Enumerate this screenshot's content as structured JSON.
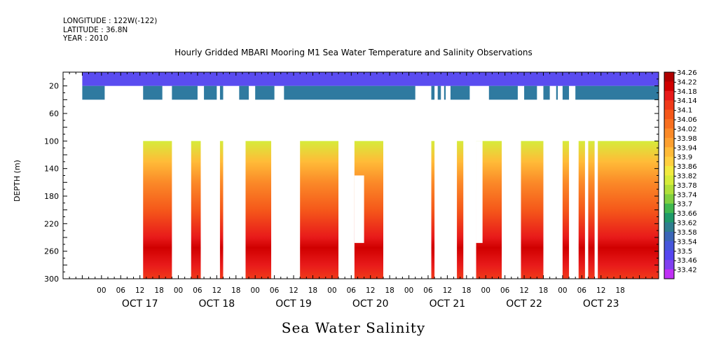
{
  "header": {
    "longitude": "LONGITUDE : 122W(-122)",
    "latitude": "LATITUDE : 36.8N",
    "year": "YEAR : 2010"
  },
  "chart_data": {
    "type": "heatmap",
    "title": "Hourly Gridded MBARI Mooring M1 Sea Water Temperature and Salinity Observations",
    "bottom_title": "Sea Water Salinity",
    "ylabel": "DEPTH (m)",
    "ylim": [
      300,
      0
    ],
    "y_ticks": [
      20,
      60,
      100,
      140,
      180,
      220,
      260,
      300
    ],
    "x_hour_labels": [
      "00",
      "06",
      "12",
      "18",
      "00",
      "06",
      "12",
      "18",
      "00",
      "06",
      "12",
      "18",
      "00",
      "06",
      "12",
      "18",
      "00",
      "06",
      "12",
      "18",
      "00",
      "06",
      "12",
      "18",
      "00",
      "06",
      "12",
      "18"
    ],
    "x_day_labels": [
      "OCT 17",
      "OCT 18",
      "OCT 19",
      "OCT 20",
      "OCT 21",
      "OCT 22",
      "OCT 23"
    ],
    "x_range_hours": [
      -12,
      174
    ],
    "colorbar_labels": [
      "34.26",
      "34.22",
      "34.18",
      "34.14",
      "34.1",
      "34.06",
      "34.02",
      "33.98",
      "33.94",
      "33.9",
      "33.86",
      "33.82",
      "33.78",
      "33.74",
      "33.7",
      "33.66",
      "33.62",
      "33.58",
      "33.54",
      "33.5",
      "33.46",
      "33.42"
    ],
    "colorbar_colors": [
      "#b00000",
      "#d00000",
      "#e81a1a",
      "#f03a1a",
      "#f5581a",
      "#f87020",
      "#fb8a28",
      "#fda030",
      "#ffbb38",
      "#ffd040",
      "#f2ea40",
      "#d6ec3a",
      "#b0e03a",
      "#80d040",
      "#40b850",
      "#1f9a6a",
      "#2f7e90",
      "#3b66b8",
      "#4656dc",
      "#5646f0",
      "#8040f0",
      "#c030f5"
    ],
    "profiles": [
      {
        "depth": 10,
        "salinity": 33.52
      },
      {
        "depth": 30,
        "salinity": 33.6
      },
      {
        "depth": 100,
        "salinity": 33.84
      },
      {
        "depth": 130,
        "salinity": 33.96
      },
      {
        "depth": 160,
        "salinity": 34.05
      },
      {
        "depth": 200,
        "salinity": 34.12
      },
      {
        "depth": 240,
        "salinity": 34.2
      },
      {
        "depth": 255,
        "salinity": 34.24
      },
      {
        "depth": 280,
        "salinity": 34.18
      },
      {
        "depth": 300,
        "salinity": 34.16
      }
    ],
    "surface_segments_hours": [
      [
        -6,
        174
      ]
    ],
    "mid_segments_hours": [
      [
        -6,
        1
      ],
      [
        13,
        19
      ],
      [
        22,
        30
      ],
      [
        32,
        36
      ],
      [
        37,
        38
      ],
      [
        43,
        46
      ],
      [
        48,
        54
      ],
      [
        57,
        98
      ],
      [
        103,
        104
      ],
      [
        105,
        106
      ],
      [
        107,
        107.5
      ],
      [
        109,
        115
      ],
      [
        121,
        130
      ],
      [
        132,
        136
      ],
      [
        138,
        140
      ],
      [
        142,
        142.5
      ],
      [
        144,
        146
      ],
      [
        148,
        174
      ]
    ],
    "deep_segments_hours": [
      [
        13,
        22
      ],
      [
        28,
        31
      ],
      [
        37,
        38
      ],
      [
        45,
        53
      ],
      [
        62,
        74
      ],
      [
        79,
        88
      ],
      [
        103,
        104
      ],
      [
        111,
        113
      ],
      [
        117,
        125
      ],
      [
        131,
        138
      ],
      [
        144,
        146
      ],
      [
        149,
        151
      ],
      [
        152,
        154
      ],
      [
        155,
        174
      ]
    ],
    "deep_notches": [
      {
        "hours": [
          79,
          82
        ],
        "from_depth": 150,
        "to_depth": 248
      },
      {
        "hours": [
          117,
          119
        ],
        "from_depth": 100,
        "to_depth": 248
      }
    ],
    "deep_tops": [
      {
        "hours": [
          15,
          17
        ],
        "depth": 80
      },
      {
        "hours": [
          29,
          31
        ],
        "depth": 80
      },
      {
        "hours": [
          50,
          53
        ],
        "depth": 80
      },
      {
        "hours": [
          64,
          65
        ],
        "depth": 80
      },
      {
        "hours": [
          70,
          72
        ],
        "depth": 80
      },
      {
        "hours": [
          151,
          152
        ],
        "depth": 80
      }
    ]
  }
}
